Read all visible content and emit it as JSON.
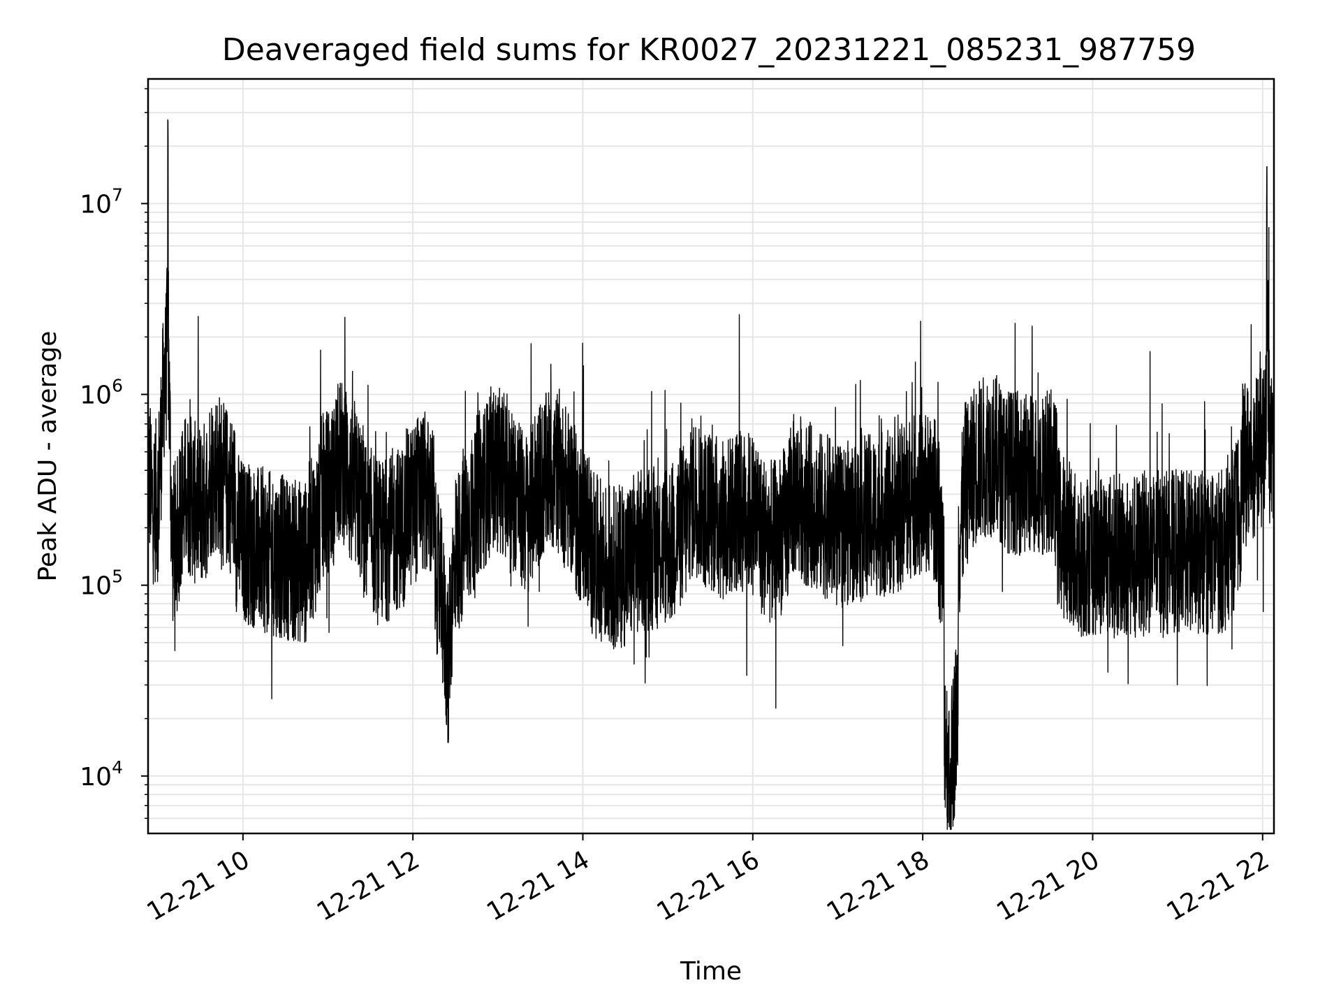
{
  "chart_data": {
    "type": "line",
    "title": "Deaveraged field sums for KR0027_20231221_085231_987759",
    "xlabel": "Time",
    "ylabel": "Peak ADU - average",
    "x_ticks": [
      "12-21 10",
      "12-21 12",
      "12-21 14",
      "12-21 16",
      "12-21 18",
      "12-21 20",
      "12-21 22"
    ],
    "y_ticks": [
      {
        "value": 10000,
        "base": "10",
        "exp": "4"
      },
      {
        "value": 100000,
        "base": "10",
        "exp": "5"
      },
      {
        "value": 1000000,
        "base": "10",
        "exp": "6"
      },
      {
        "value": 10000000,
        "base": "10",
        "exp": "7"
      }
    ],
    "xlim": [
      "2023-12-21 08:53",
      "2023-12-21 22:08"
    ],
    "ylim": [
      5000,
      45000000
    ],
    "yscale": "log",
    "grid": true,
    "line_color": "#000000",
    "grid_color": "#e6e6e6",
    "series_points": [
      [
        "08:53",
        250000
      ],
      [
        "09:00",
        280000
      ],
      [
        "09:07",
        29000000
      ],
      [
        "09:10",
        160000
      ],
      [
        "09:20",
        300000
      ],
      [
        "09:30",
        260000
      ],
      [
        "09:40",
        400000
      ],
      [
        "09:50",
        320000
      ],
      [
        "10:00",
        170000
      ],
      [
        "10:15",
        150000
      ],
      [
        "10:30",
        140000
      ],
      [
        "10:45",
        130000
      ],
      [
        "10:55",
        260000
      ],
      [
        "11:10",
        450000
      ],
      [
        "11:20",
        300000
      ],
      [
        "11:35",
        160000
      ],
      [
        "11:50",
        200000
      ],
      [
        "12:00",
        260000
      ],
      [
        "12:05",
        380000
      ],
      [
        "12:15",
        220000
      ],
      [
        "12:20",
        90000
      ],
      [
        "12:25",
        14700
      ],
      [
        "12:30",
        150000
      ],
      [
        "12:45",
        260000
      ],
      [
        "12:55",
        420000
      ],
      [
        "13:05",
        380000
      ],
      [
        "13:20",
        240000
      ],
      [
        "13:35",
        420000
      ],
      [
        "13:45",
        380000
      ],
      [
        "13:55",
        260000
      ],
      [
        "14:10",
        140000
      ],
      [
        "14:25",
        120000
      ],
      [
        "14:40",
        150000
      ],
      [
        "14:55",
        160000
      ],
      [
        "15:05",
        170000
      ],
      [
        "15:20",
        300000
      ],
      [
        "15:35",
        220000
      ],
      [
        "15:50",
        240000
      ],
      [
        "16:00",
        240000
      ],
      [
        "16:15",
        150000
      ],
      [
        "16:30",
        300000
      ],
      [
        "16:45",
        250000
      ],
      [
        "17:00",
        200000
      ],
      [
        "17:20",
        230000
      ],
      [
        "17:40",
        240000
      ],
      [
        "17:55",
        300000
      ],
      [
        "18:10",
        280000
      ],
      [
        "18:19",
        7700
      ],
      [
        "18:30",
        340000
      ],
      [
        "18:45",
        520000
      ],
      [
        "19:00",
        400000
      ],
      [
        "19:15",
        380000
      ],
      [
        "19:30",
        400000
      ],
      [
        "19:38",
        190000
      ],
      [
        "19:50",
        140000
      ],
      [
        "20:05",
        150000
      ],
      [
        "20:25",
        140000
      ],
      [
        "20:45",
        150000
      ],
      [
        "21:05",
        150000
      ],
      [
        "21:25",
        145000
      ],
      [
        "21:38",
        160000
      ],
      [
        "21:45",
        380000
      ],
      [
        "21:55",
        520000
      ],
      [
        "22:02",
        500000
      ],
      [
        "22:03",
        18000000
      ],
      [
        "22:05",
        520000
      ],
      [
        "22:08",
        520000
      ]
    ]
  }
}
